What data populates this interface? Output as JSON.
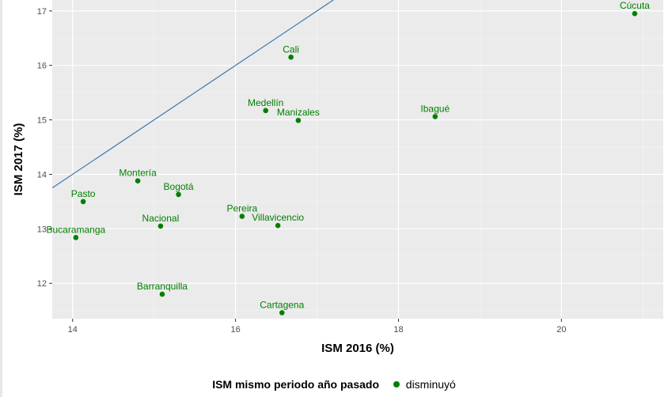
{
  "chart_data": {
    "type": "scatter",
    "title": "",
    "xlabel": "ISM 2016 (%)",
    "ylabel": "ISM 2017 (%)",
    "xlim": [
      13.75,
      21.25
    ],
    "ylim": [
      11.35,
      17.2
    ],
    "x_ticks": [
      14,
      16,
      18,
      20
    ],
    "y_ticks": [
      12,
      13,
      14,
      15,
      16,
      17
    ],
    "grid": true,
    "reference_line": "y = x",
    "series": [
      {
        "name": "disminuyó",
        "color": "#008000",
        "points": [
          {
            "label": "Cúcuta",
            "x": 20.9,
            "y": 16.95
          },
          {
            "label": "Cali",
            "x": 16.68,
            "y": 16.15
          },
          {
            "label": "Medellín",
            "x": 16.37,
            "y": 15.17
          },
          {
            "label": "Manizales",
            "x": 16.77,
            "y": 14.99
          },
          {
            "label": "Ibagué",
            "x": 18.45,
            "y": 15.06
          },
          {
            "label": "Montería",
            "x": 14.8,
            "y": 13.88
          },
          {
            "label": "Bogotá",
            "x": 15.3,
            "y": 13.63
          },
          {
            "label": "Pasto",
            "x": 14.13,
            "y": 13.5
          },
          {
            "label": "Pereira",
            "x": 16.08,
            "y": 13.23
          },
          {
            "label": "Villavicencio",
            "x": 16.52,
            "y": 13.06
          },
          {
            "label": "Nacional",
            "x": 15.08,
            "y": 13.05
          },
          {
            "label": "Bucaramanga",
            "x": 14.04,
            "y": 12.84
          },
          {
            "label": "Barranquilla",
            "x": 15.1,
            "y": 11.8
          },
          {
            "label": "Cartagena",
            "x": 16.57,
            "y": 11.46
          }
        ]
      }
    ],
    "legend": {
      "title": "ISM mismo periodo año pasado",
      "position": "bottom",
      "entries": [
        "disminuyó"
      ]
    }
  }
}
